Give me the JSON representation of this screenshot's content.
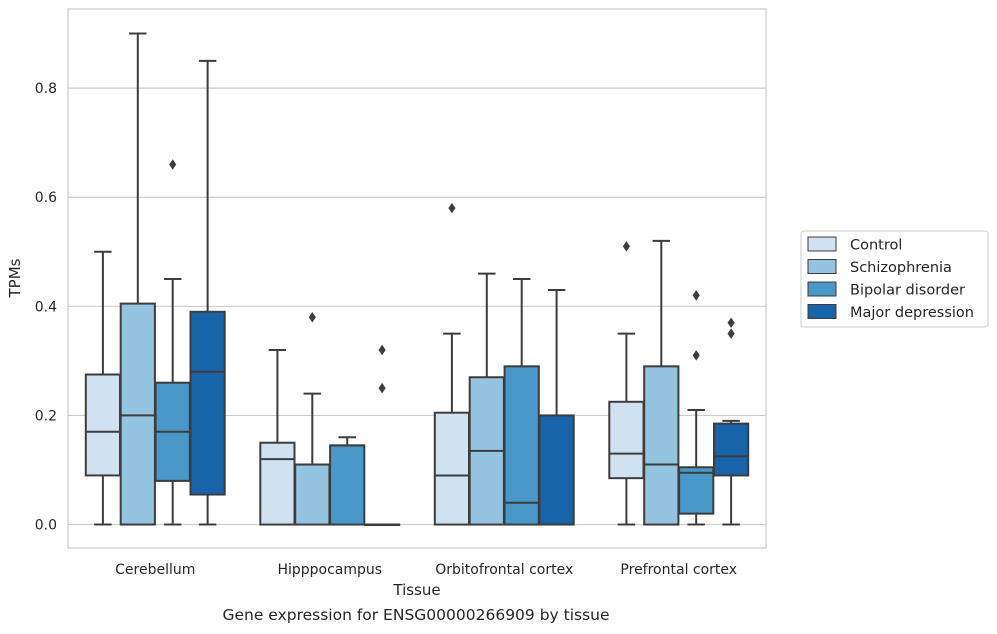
{
  "caption": "Gene expression for ENSG00000266909 by tissue",
  "chart_data": {
    "type": "boxplot",
    "xlabel": "Tissue",
    "ylabel": "TPMs",
    "ylim": [
      -0.043,
      0.945
    ],
    "yticks": [
      0.0,
      0.2,
      0.4,
      0.6,
      0.8
    ],
    "ytick_labels": [
      "0.0",
      "0.2",
      "0.4",
      "0.6",
      "0.8"
    ],
    "grid": "horizontal",
    "legend_position": "right",
    "categories": [
      "Cerebellum",
      "Hipppocampus",
      "Orbitofrontal cortex",
      "Prefrontal cortex"
    ],
    "series": [
      {
        "name": "Control",
        "color": "#d0e1f2",
        "boxes": [
          {
            "whislo": 0.0,
            "q1": 0.09,
            "med": 0.17,
            "q3": 0.275,
            "whishi": 0.5,
            "fliers": []
          },
          {
            "whislo": 0.0,
            "q1": 0.0,
            "med": 0.12,
            "q3": 0.15,
            "whishi": 0.32,
            "fliers": []
          },
          {
            "whislo": 0.0,
            "q1": 0.0,
            "med": 0.09,
            "q3": 0.205,
            "whishi": 0.35,
            "fliers": [
              0.58
            ]
          },
          {
            "whislo": 0.0,
            "q1": 0.085,
            "med": 0.13,
            "q3": 0.225,
            "whishi": 0.35,
            "fliers": [
              0.51
            ]
          }
        ]
      },
      {
        "name": "Schizophrenia",
        "color": "#94c4df",
        "boxes": [
          {
            "whislo": 0.0,
            "q1": 0.0,
            "med": 0.2,
            "q3": 0.405,
            "whishi": 0.9,
            "fliers": []
          },
          {
            "whislo": 0.0,
            "q1": 0.0,
            "med": 0.11,
            "q3": 0.11,
            "whishi": 0.24,
            "fliers": [
              0.38
            ]
          },
          {
            "whislo": 0.0,
            "q1": 0.0,
            "med": 0.135,
            "q3": 0.27,
            "whishi": 0.46,
            "fliers": []
          },
          {
            "whislo": 0.0,
            "q1": 0.0,
            "med": 0.11,
            "q3": 0.29,
            "whishi": 0.52,
            "fliers": []
          }
        ]
      },
      {
        "name": "Bipolar disorder",
        "color": "#4a98c9",
        "boxes": [
          {
            "whislo": 0.0,
            "q1": 0.08,
            "med": 0.17,
            "q3": 0.26,
            "whishi": 0.45,
            "fliers": [
              0.66
            ]
          },
          {
            "whislo": 0.0,
            "q1": 0.0,
            "med": 0.145,
            "q3": 0.145,
            "whishi": 0.16,
            "fliers": []
          },
          {
            "whislo": 0.0,
            "q1": 0.0,
            "med": 0.04,
            "q3": 0.29,
            "whishi": 0.45,
            "fliers": []
          },
          {
            "whislo": 0.0,
            "q1": 0.02,
            "med": 0.095,
            "q3": 0.105,
            "whishi": 0.21,
            "fliers": [
              0.31,
              0.42
            ]
          }
        ]
      },
      {
        "name": "Major depression",
        "color": "#1764ab",
        "boxes": [
          {
            "whislo": 0.0,
            "q1": 0.055,
            "med": 0.28,
            "q3": 0.39,
            "whishi": 0.85,
            "fliers": []
          },
          {
            "whislo": 0.0,
            "q1": 0.0,
            "med": 0.0,
            "q3": 0.0,
            "whishi": 0.0,
            "fliers": [
              0.25,
              0.32
            ]
          },
          {
            "whislo": 0.0,
            "q1": 0.0,
            "med": 0.0,
            "q3": 0.2,
            "whishi": 0.43,
            "fliers": []
          },
          {
            "whislo": 0.0,
            "q1": 0.09,
            "med": 0.125,
            "q3": 0.185,
            "whishi": 0.19,
            "fliers": [
              0.35,
              0.37
            ]
          }
        ]
      }
    ]
  }
}
